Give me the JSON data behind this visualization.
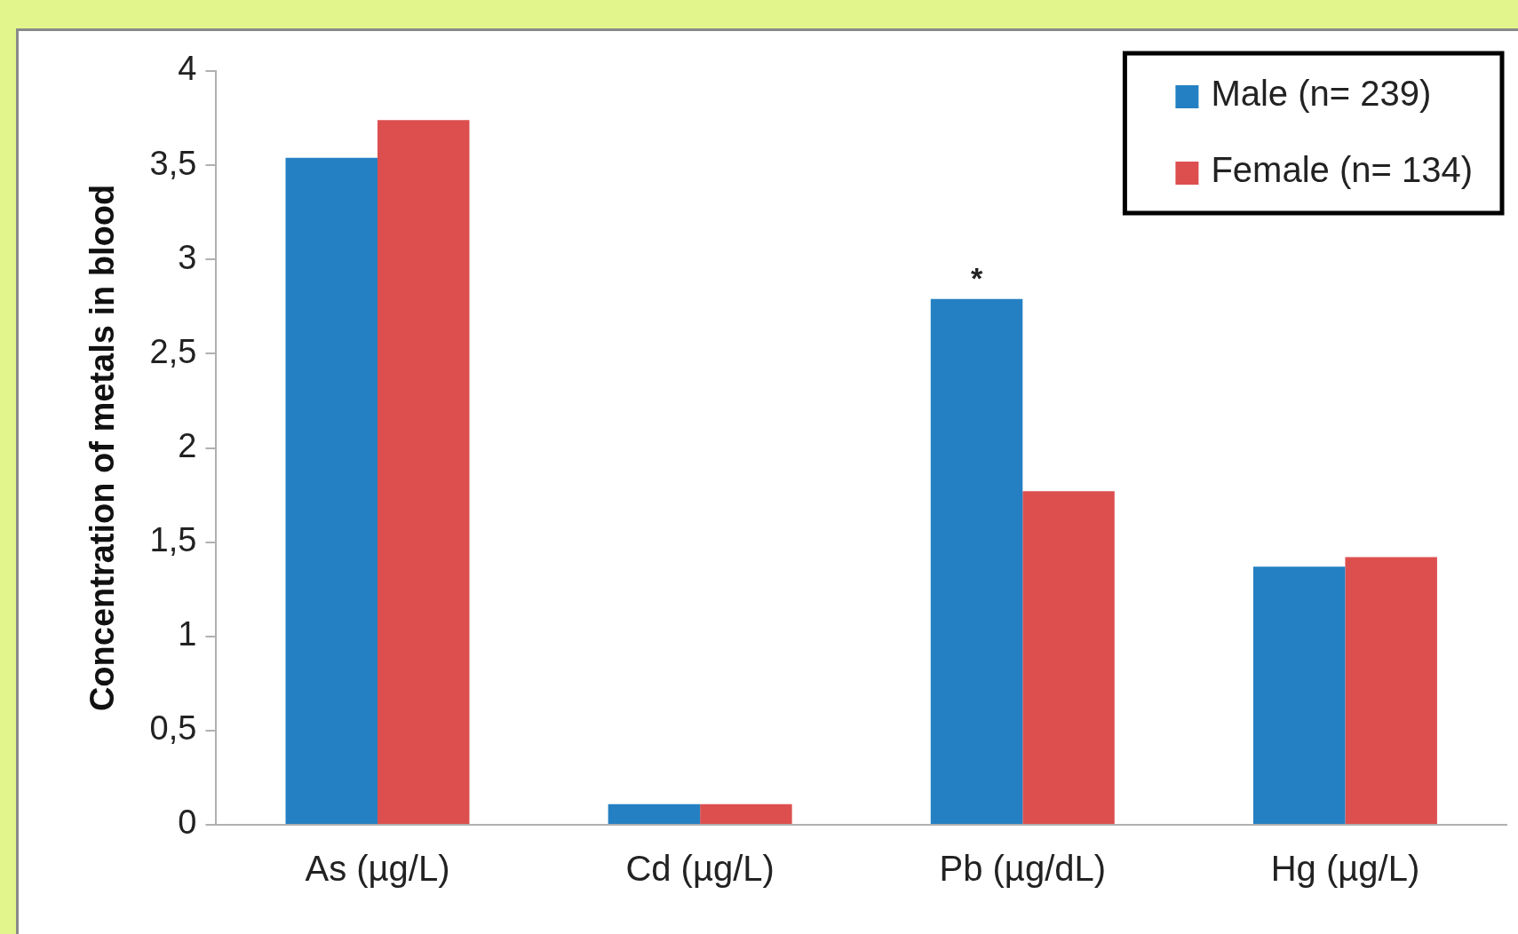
{
  "chart_data": {
    "type": "bar",
    "ylabel": "Concentration of metals in blood",
    "categories": [
      "As (µg/L)",
      "Cd (µg/L)",
      "Pb (µg/dL)",
      "Hg (µg/L)"
    ],
    "series": [
      {
        "name": "Male (n= 239)",
        "color": "#2580c3",
        "values": [
          3.54,
          0.11,
          2.79,
          1.37
        ]
      },
      {
        "name": "Female (n= 134)",
        "color": "#dd4f4f",
        "values": [
          3.74,
          0.11,
          1.77,
          1.42
        ]
      }
    ],
    "ylim": [
      0,
      4
    ],
    "yticks": [
      0,
      {
        "value": 0.5,
        "label": "0,5"
      },
      1,
      {
        "value": 1.5,
        "label": "1,5"
      },
      2,
      {
        "value": 2.5,
        "label": "2,5"
      },
      3,
      {
        "value": 3.5,
        "label": "3,5"
      },
      4
    ],
    "annotations": [
      "*"
    ],
    "grid": false,
    "legend": "top right"
  }
}
